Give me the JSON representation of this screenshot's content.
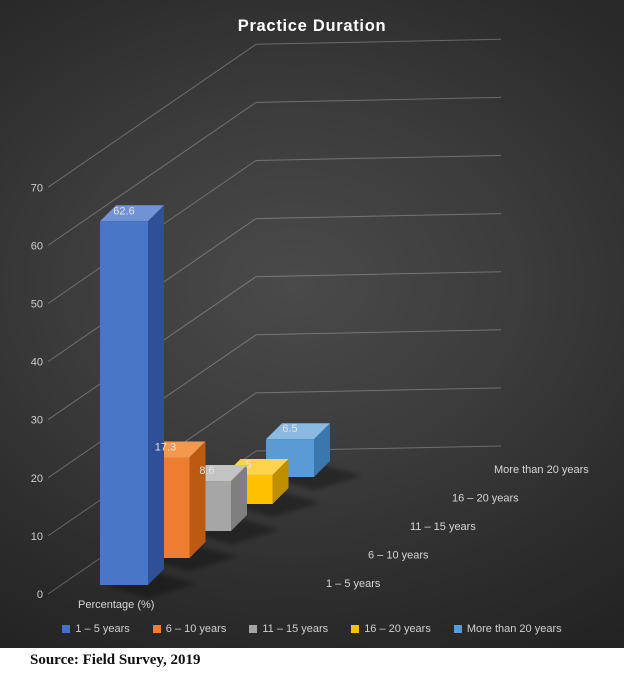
{
  "source": "Source: Field Survey, 2019",
  "chart_data": {
    "type": "bar",
    "variant": "3d-column",
    "title": "Practice Duration",
    "axis_label": "Percentage (%)",
    "categories": [
      "1 – 5 years",
      "6 – 10 years",
      "11 – 15 years",
      "16 – 20 years",
      "More than 20 years"
    ],
    "values": [
      62.6,
      17.3,
      8.6,
      5,
      6.5
    ],
    "data_labels": [
      "62.6",
      "17.3",
      "8.6",
      "5",
      "6.5"
    ],
    "y_ticks": [
      0,
      10,
      20,
      30,
      40,
      50,
      60,
      70
    ],
    "ylim": [
      0,
      70
    ],
    "grid": true,
    "legend_position": "bottom",
    "point_colors": [
      {
        "front": "#4A76C8",
        "top": "#7093D6",
        "side": "#2F5096",
        "swatch": "#4472C4"
      },
      {
        "front": "#ED7D31",
        "top": "#F2994E",
        "side": "#BC5A14",
        "swatch": "#ED7D31"
      },
      {
        "front": "#A6A6A6",
        "top": "#C3C3C3",
        "side": "#7F7F7F",
        "swatch": "#A5A5A5"
      },
      {
        "front": "#FFC000",
        "top": "#FFD34D",
        "side": "#BF8F00",
        "swatch": "#FFC000"
      },
      {
        "front": "#5B9BD5",
        "top": "#8AB9E2",
        "side": "#3A77AE",
        "swatch": "#5B9BD5"
      }
    ],
    "text_colors": {
      "title": "#FFFFFF",
      "ticks": "#D0D0D0",
      "data_labels": "#E3E3E3",
      "categories": "#D6D6D6",
      "legend": "#D0D0D0"
    },
    "background": {
      "center": "#4A4A4A",
      "edge": "#232323"
    }
  }
}
